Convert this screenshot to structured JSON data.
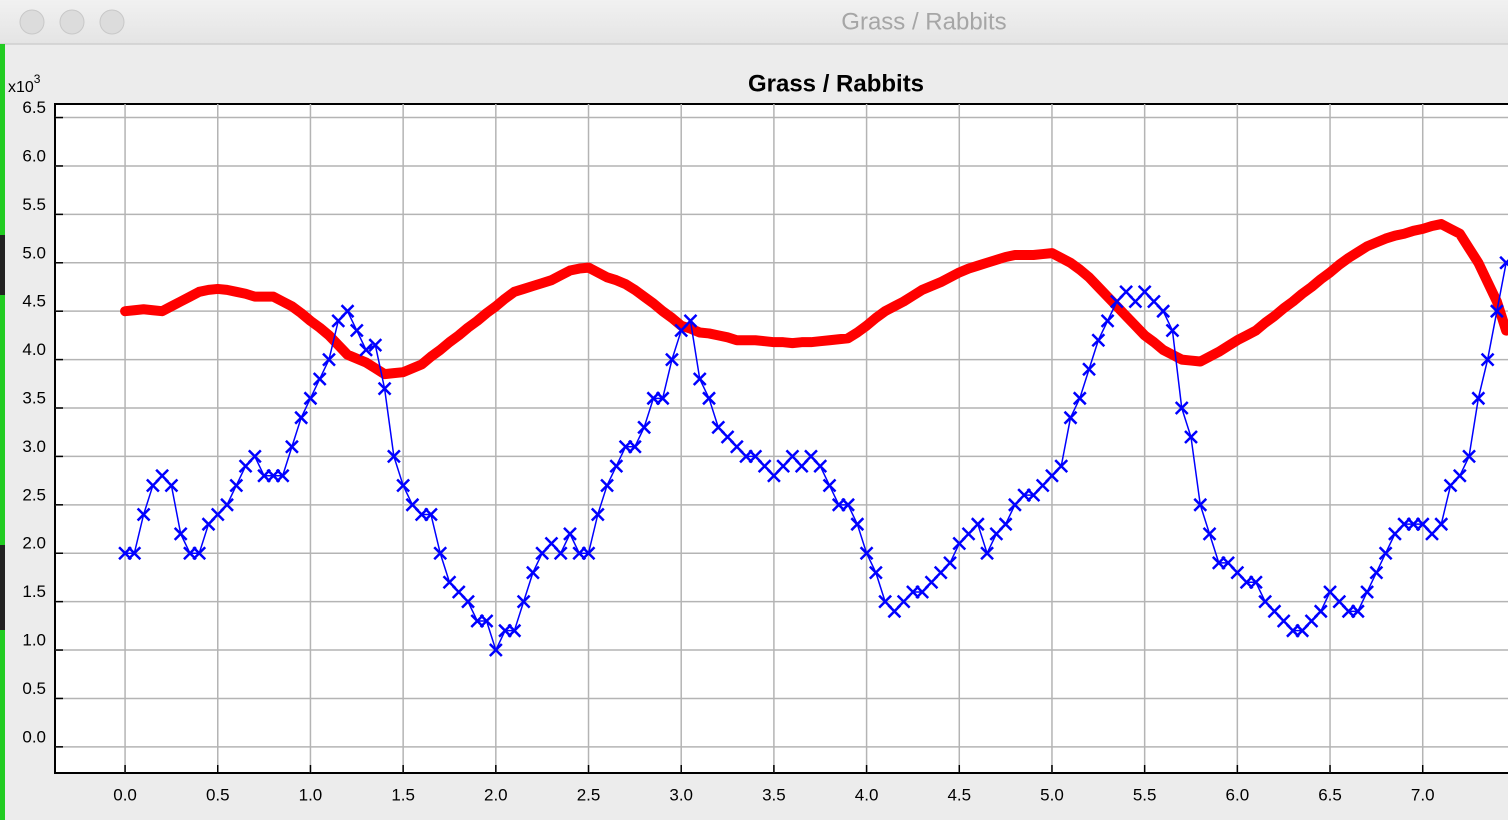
{
  "window": {
    "title": "Grass / Rabbits"
  },
  "chart_data": {
    "type": "line",
    "title": "Grass / Rabbits",
    "y_multiplier": {
      "text": "x10",
      "superscript": "3"
    },
    "x": [
      0,
      0.05,
      0.1,
      0.15,
      0.2,
      0.25,
      0.3,
      0.35,
      0.4,
      0.45,
      0.5,
      0.55,
      0.6,
      0.65,
      0.7,
      0.75,
      0.8,
      0.85,
      0.9,
      0.95,
      1,
      1.05,
      1.1,
      1.15,
      1.2,
      1.25,
      1.3,
      1.35,
      1.4,
      1.45,
      1.5,
      1.55,
      1.6,
      1.65,
      1.7,
      1.75,
      1.8,
      1.85,
      1.9,
      1.95,
      2,
      2.05,
      2.1,
      2.15,
      2.2,
      2.25,
      2.3,
      2.35,
      2.4,
      2.45,
      2.5,
      2.55,
      2.6,
      2.65,
      2.7,
      2.75,
      2.8,
      2.85,
      2.9,
      2.95,
      3,
      3.05,
      3.1,
      3.15,
      3.2,
      3.25,
      3.3,
      3.35,
      3.4,
      3.45,
      3.5,
      3.55,
      3.6,
      3.65,
      3.7,
      3.75,
      3.8,
      3.85,
      3.9,
      3.95,
      4,
      4.05,
      4.1,
      4.15,
      4.2,
      4.25,
      4.3,
      4.35,
      4.4,
      4.45,
      4.5,
      4.55,
      4.6,
      4.65,
      4.7,
      4.75,
      4.8,
      4.85,
      4.9,
      4.95,
      5,
      5.05,
      5.1,
      5.15,
      5.2,
      5.25,
      5.3,
      5.35,
      5.4,
      5.45,
      5.5,
      5.55,
      5.6,
      5.65,
      5.7,
      5.75,
      5.8,
      5.85,
      5.9,
      5.95,
      6,
      6.05,
      6.1,
      6.15,
      6.2,
      6.25,
      6.3,
      6.35,
      6.4,
      6.45,
      6.5,
      6.55,
      6.6,
      6.65,
      6.7,
      6.75,
      6.8,
      6.85,
      6.9,
      6.95,
      7,
      7.05,
      7.1,
      7.15,
      7.2,
      7.25,
      7.3,
      7.35,
      7.4,
      7.45
    ],
    "series": [
      {
        "color": "#ff0000",
        "line_width": 10,
        "marker": "none",
        "values": [
          4.5,
          4.51,
          4.52,
          4.51,
          4.5,
          4.55,
          4.6,
          4.65,
          4.7,
          4.72,
          4.73,
          4.72,
          4.7,
          4.68,
          4.65,
          4.65,
          4.65,
          4.6,
          4.55,
          4.48,
          4.4,
          4.33,
          4.25,
          4.15,
          4.05,
          4.01,
          3.97,
          3.91,
          3.85,
          3.86,
          3.87,
          3.91,
          3.95,
          4.03,
          4.1,
          4.18,
          4.25,
          4.33,
          4.4,
          4.48,
          4.55,
          4.63,
          4.7,
          4.73,
          4.76,
          4.79,
          4.82,
          4.87,
          4.92,
          4.94,
          4.95,
          4.9,
          4.85,
          4.82,
          4.78,
          4.72,
          4.65,
          4.58,
          4.5,
          4.43,
          4.35,
          4.32,
          4.28,
          4.27,
          4.25,
          4.23,
          4.2,
          4.2,
          4.2,
          4.19,
          4.18,
          4.18,
          4.17,
          4.18,
          4.18,
          4.19,
          4.2,
          4.21,
          4.22,
          4.28,
          4.35,
          4.43,
          4.5,
          4.55,
          4.6,
          4.66,
          4.72,
          4.76,
          4.8,
          4.85,
          4.9,
          4.94,
          4.97,
          5.0,
          5.03,
          5.06,
          5.08,
          5.08,
          5.08,
          5.09,
          5.1,
          5.05,
          5.0,
          4.93,
          4.85,
          4.75,
          4.65,
          4.55,
          4.45,
          4.35,
          4.25,
          4.18,
          4.1,
          4.05,
          4.0,
          3.99,
          3.98,
          4.03,
          4.08,
          4.14,
          4.2,
          4.25,
          4.3,
          4.38,
          4.45,
          4.53,
          4.6,
          4.68,
          4.75,
          4.83,
          4.9,
          4.98,
          5.05,
          5.11,
          5.17,
          5.21,
          5.25,
          5.28,
          5.3,
          5.33,
          5.35,
          5.38,
          5.4,
          5.35,
          5.3,
          5.15,
          5.0,
          4.8,
          4.6,
          4.3
        ]
      },
      {
        "color": "#0000ff",
        "line_width": 1.5,
        "marker": "x",
        "values": [
          2.0,
          2.0,
          2.4,
          2.7,
          2.8,
          2.7,
          2.2,
          2.0,
          2.0,
          2.3,
          2.4,
          2.5,
          2.7,
          2.9,
          3.0,
          2.8,
          2.8,
          2.8,
          3.1,
          3.4,
          3.6,
          3.8,
          4.0,
          4.4,
          4.5,
          4.3,
          4.1,
          4.15,
          3.7,
          3.0,
          2.7,
          2.5,
          2.4,
          2.4,
          2.0,
          1.7,
          1.6,
          1.5,
          1.3,
          1.3,
          1.0,
          1.2,
          1.2,
          1.5,
          1.8,
          2.0,
          2.1,
          2.0,
          2.2,
          2.0,
          2.0,
          2.4,
          2.7,
          2.9,
          3.1,
          3.1,
          3.3,
          3.6,
          3.6,
          4.0,
          4.3,
          4.4,
          3.8,
          3.6,
          3.3,
          3.2,
          3.1,
          3.0,
          3.0,
          2.9,
          2.8,
          2.9,
          3.0,
          2.9,
          3.0,
          2.9,
          2.7,
          2.5,
          2.5,
          2.3,
          2.0,
          1.8,
          1.5,
          1.4,
          1.5,
          1.6,
          1.6,
          1.7,
          1.8,
          1.9,
          2.1,
          2.2,
          2.3,
          2.0,
          2.2,
          2.3,
          2.5,
          2.6,
          2.6,
          2.7,
          2.8,
          2.9,
          3.4,
          3.6,
          3.9,
          4.2,
          4.4,
          4.6,
          4.7,
          4.6,
          4.7,
          4.6,
          4.5,
          4.3,
          3.5,
          3.2,
          2.5,
          2.2,
          1.9,
          1.9,
          1.8,
          1.7,
          1.7,
          1.5,
          1.4,
          1.3,
          1.2,
          1.2,
          1.3,
          1.4,
          1.6,
          1.5,
          1.4,
          1.4,
          1.6,
          1.8,
          2.0,
          2.2,
          2.3,
          2.3,
          2.3,
          2.2,
          2.3,
          2.7,
          2.8,
          3.0,
          3.6,
          4.0,
          4.5,
          5.0
        ]
      }
    ],
    "xlim": [
      -0.378,
      7.46
    ],
    "ylim": [
      -0.27,
      6.64
    ],
    "xticks": [
      {
        "value": 0,
        "label": "0.0"
      },
      0.5,
      {
        "value": 1,
        "label": "1.0"
      },
      1.5,
      {
        "value": 2,
        "label": "2.0"
      },
      2.5,
      {
        "value": 3,
        "label": "3.0"
      },
      3.5,
      {
        "value": 4,
        "label": "4.0"
      },
      4.5,
      {
        "value": 5,
        "label": "5.0"
      },
      5.5,
      {
        "value": 6,
        "label": "6.0"
      },
      6.5,
      {
        "value": 7,
        "label": "7.0"
      }
    ],
    "yticks": [
      {
        "value": 0,
        "label": "0.0"
      },
      0.5,
      {
        "value": 1,
        "label": "1.0"
      },
      1.5,
      {
        "value": 2,
        "label": "2.0"
      },
      2.5,
      {
        "value": 3,
        "label": "3.0"
      },
      3.5,
      {
        "value": 4,
        "label": "4.0"
      },
      4.5,
      {
        "value": 5,
        "label": "5.0"
      },
      5.5,
      {
        "value": 6,
        "label": "6.0"
      },
      6.5
    ],
    "grid": true
  }
}
